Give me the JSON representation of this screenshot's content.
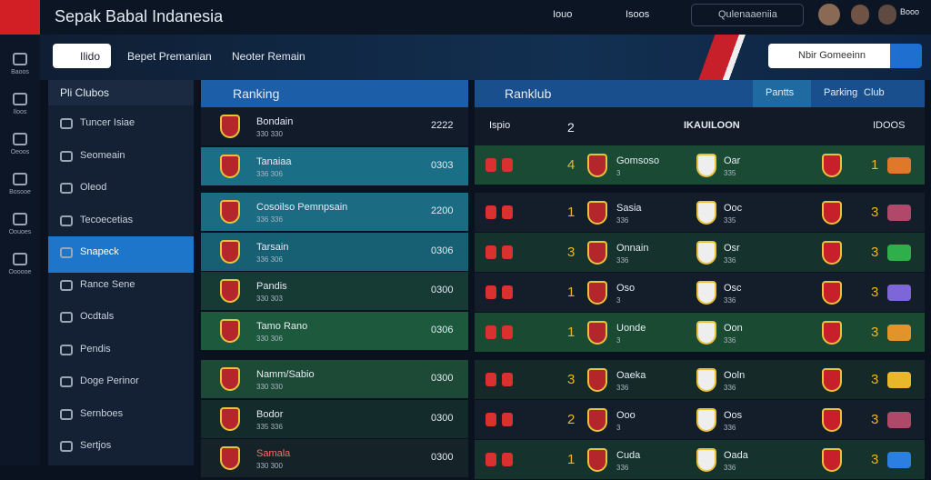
{
  "header": {
    "title": "Sepak Babal Indanesia",
    "links": [
      "Iouo",
      "Isoos"
    ],
    "search": "Qulenaaeniia",
    "user": "Booo"
  },
  "toolbar": {
    "buttons": [
      "Ilido",
      "Bepet Premanian",
      "Neoter Remain"
    ],
    "search": "Nbir Gomeeinn"
  },
  "sidebar_icons": [
    "Baoos",
    "Iloos",
    "Oeoos",
    "Bosooe",
    "Oouoes",
    "Oooooe"
  ],
  "menu": {
    "title": "Pli Clubos",
    "active": 4,
    "items": [
      "Tuncer Isiae",
      "Seomeain",
      "Oleod",
      "Tecoecetias",
      "Snapeck",
      "Rance Sene",
      "Ocdtals",
      "Pendis",
      "Doge Perinor",
      "Sernboes",
      "Sertjos"
    ]
  },
  "ranking": {
    "title": "Ranking",
    "groups": [
      [
        {
          "name": "Bondain",
          "sub": "330 330",
          "score": "2222",
          "color": "#111b29"
        },
        {
          "name": "Tanaiaa",
          "sub": "336 306",
          "score": "0303",
          "color": "#1a6e86"
        }
      ],
      [
        {
          "name": "Cosoilso Pemnpsain",
          "sub": "336 336",
          "score": "2200",
          "color": "#1b6b82"
        },
        {
          "name": "Tarsain",
          "sub": "336 306",
          "score": "0306",
          "color": "#175f73"
        },
        {
          "name": "Pandis",
          "sub": "330 303",
          "score": "0300",
          "color": "#163a34"
        },
        {
          "name": "Tamo Rano",
          "sub": "330 306",
          "score": "0306",
          "color": "#1d5a3d"
        }
      ],
      [
        {
          "name": "Namm/Sabio",
          "sub": "330 330",
          "score": "0300",
          "color": "#1d4a37"
        },
        {
          "name": "Bodor",
          "sub": "335 336",
          "score": "0300",
          "color": "#142b2b"
        },
        {
          "name": "Samala",
          "sub": "330 300",
          "score": "0300",
          "color": "#152228"
        }
      ]
    ]
  },
  "ranklub": {
    "title": "Ranklub",
    "tabs": [
      "Pantts",
      "Parking",
      "Club"
    ],
    "columns": [
      "Ispio",
      "2",
      "IKAUILOON",
      "IDOOS"
    ],
    "groups": [
      [
        {
          "rank": "4",
          "home": "Gomsoso",
          "home_sub": "3",
          "away": "Oar",
          "away_sub": "335",
          "score": "1",
          "pill": "#e0782a",
          "color": "#1a4a33"
        }
      ],
      [
        {
          "rank": "1",
          "home": "Sasia",
          "home_sub": "336",
          "away": "Ooc",
          "away_sub": "335",
          "score": "3",
          "pill": "#b0486a",
          "color": "#141e2a"
        },
        {
          "rank": "3",
          "home": "Onnain",
          "home_sub": "336",
          "away": "Osr",
          "away_sub": "336",
          "score": "3",
          "pill": "#2fae4c",
          "color": "#16322c"
        },
        {
          "rank": "1",
          "home": "Oso",
          "home_sub": "3",
          "away": "Osc",
          "away_sub": "336",
          "score": "3",
          "pill": "#7d66d8",
          "color": "#141e2a"
        },
        {
          "rank": "1",
          "home": "Uonde",
          "home_sub": "3",
          "away": "Oon",
          "away_sub": "336",
          "score": "3",
          "pill": "#e39327",
          "color": "#1b4a33"
        }
      ],
      [
        {
          "rank": "3",
          "home": "Oaeka",
          "home_sub": "336",
          "away": "Ooln",
          "away_sub": "336",
          "score": "3",
          "pill": "#e8b82a",
          "color": "#152a28"
        },
        {
          "rank": "2",
          "home": "Ooo",
          "home_sub": "3",
          "away": "Oos",
          "away_sub": "336",
          "score": "3",
          "pill": "#b0486a",
          "color": "#141e2a"
        },
        {
          "rank": "1",
          "home": "Cuda",
          "home_sub": "336",
          "away": "Oada",
          "away_sub": "336",
          "score": "3",
          "pill": "#2b7fe0",
          "color": "#16322c"
        }
      ]
    ]
  }
}
